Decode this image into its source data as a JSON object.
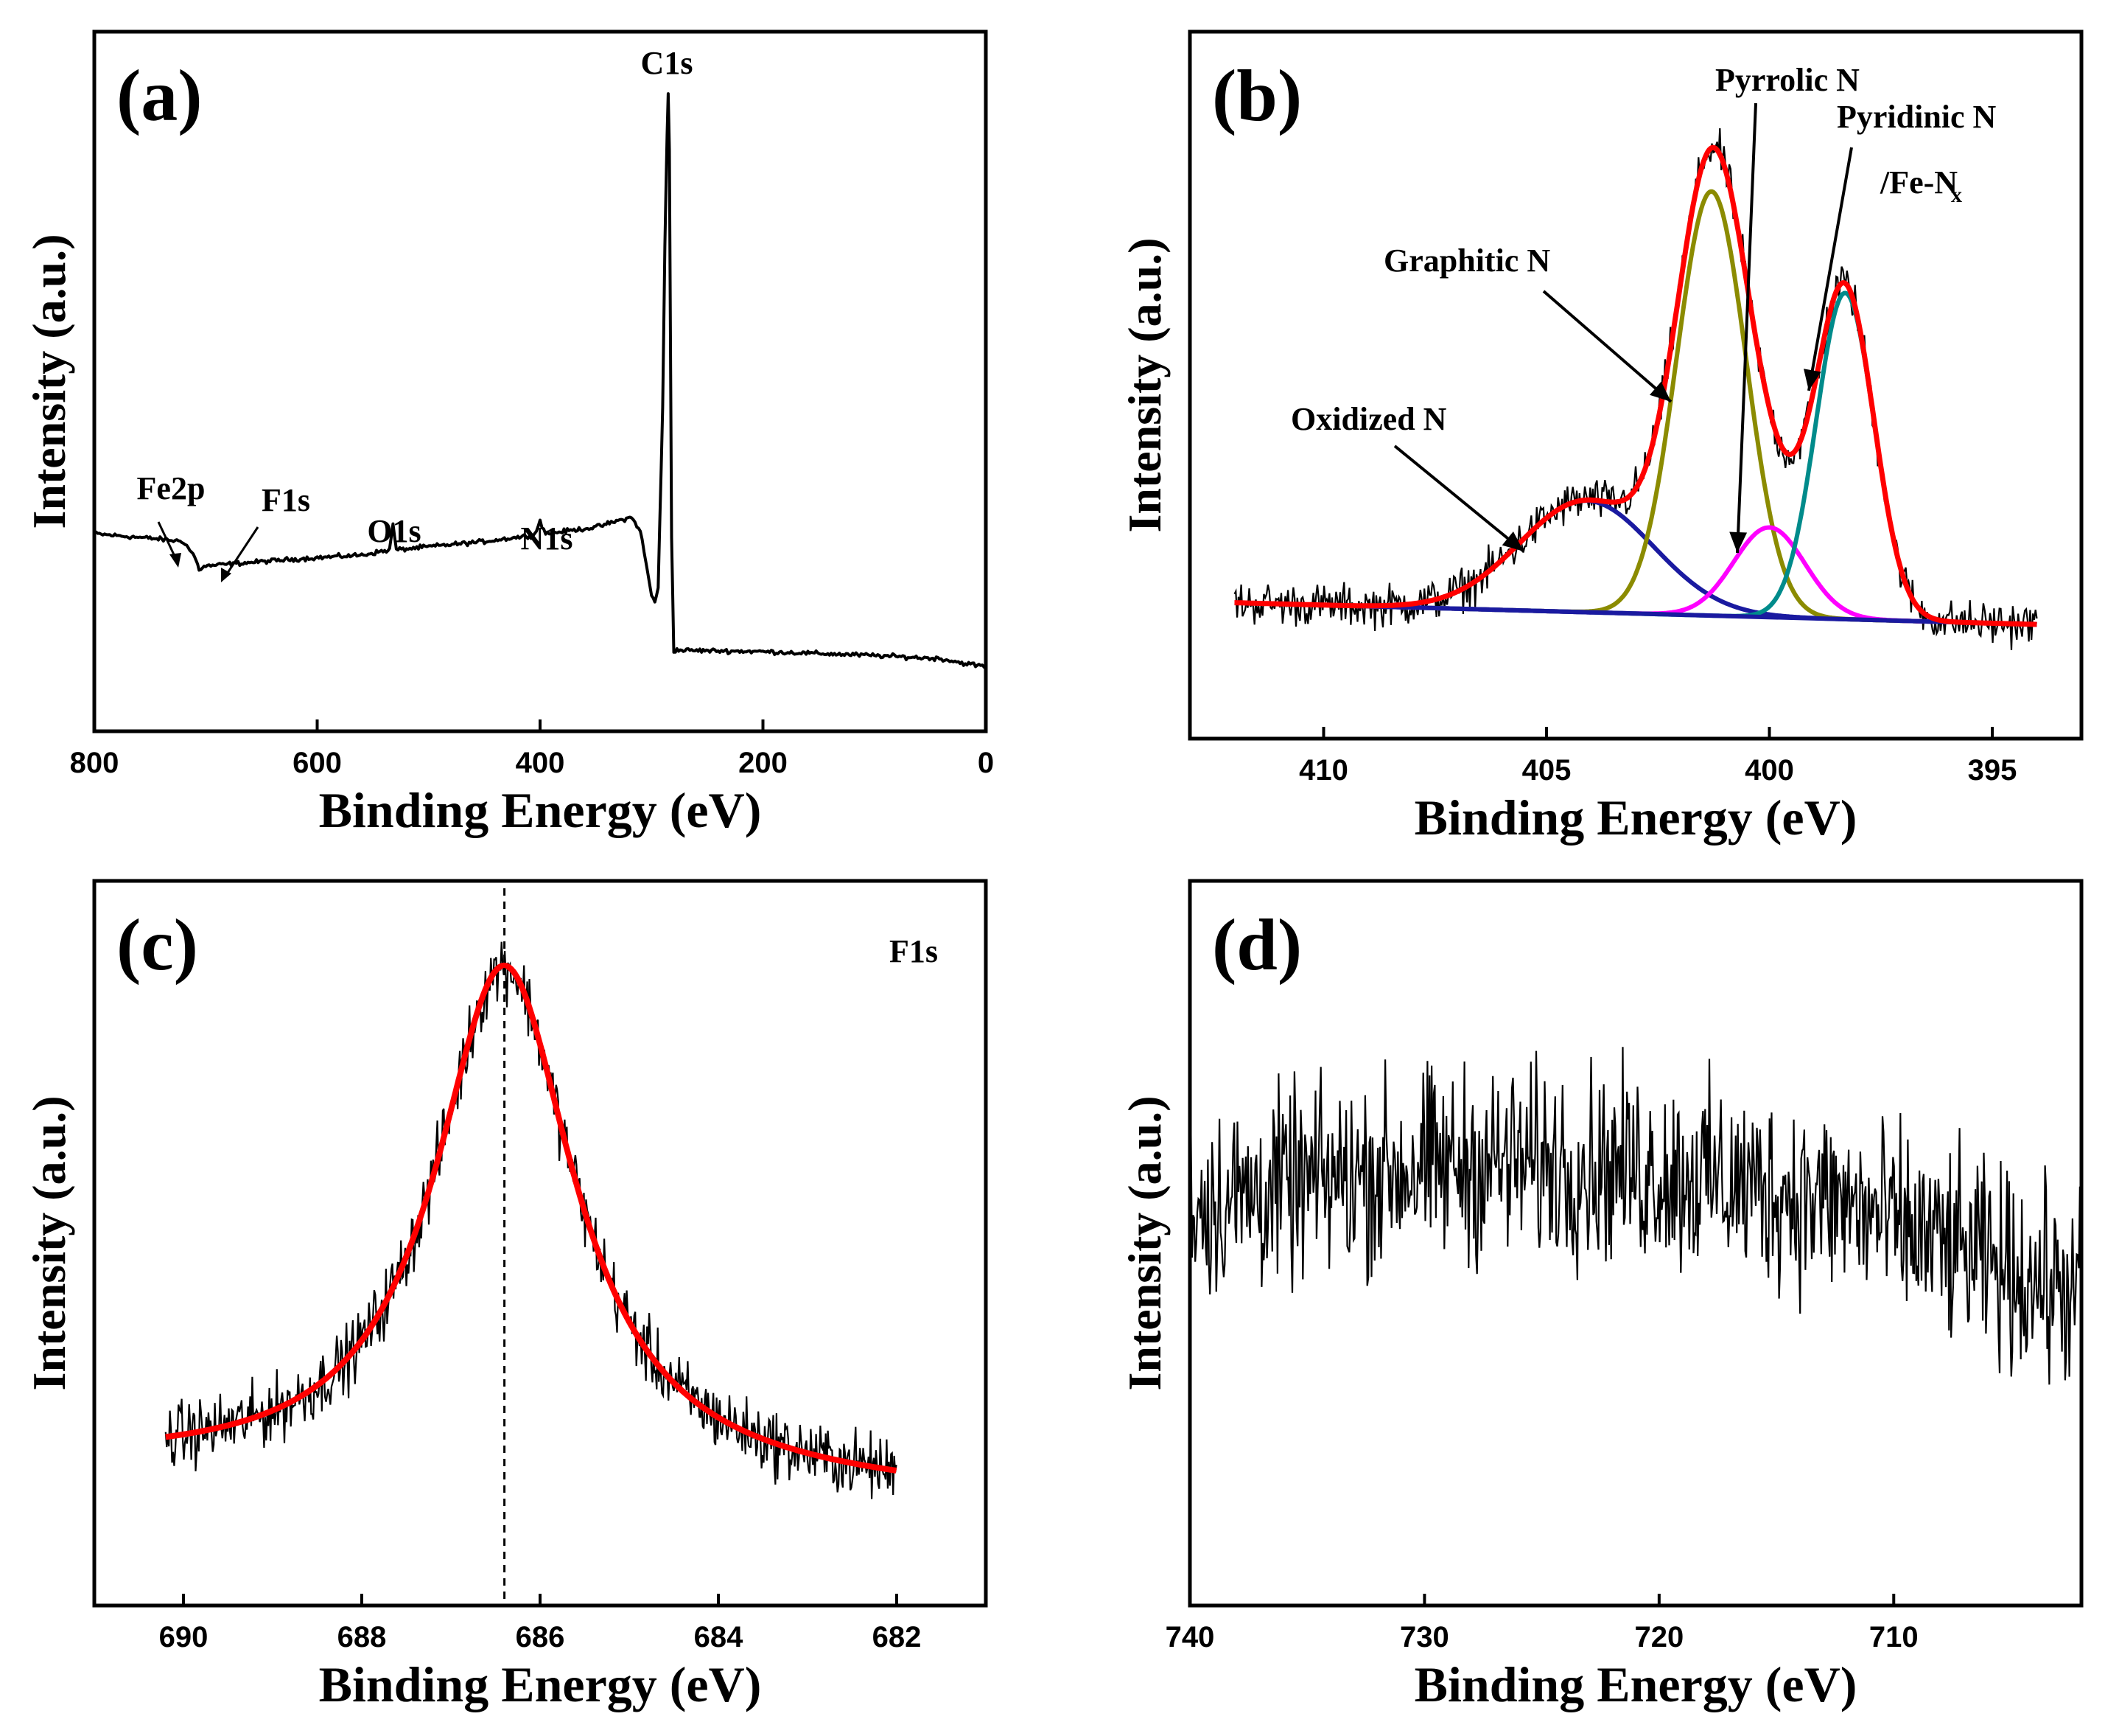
{
  "chart_data": [
    {
      "panel": "(a)",
      "type": "line",
      "xlabel": "Binding Energy (eV)",
      "ylabel": "Intensity (a.u.)",
      "xlim": [
        800,
        0
      ],
      "xticks": [
        "800",
        "600",
        "400",
        "200",
        "0"
      ],
      "x_reversed": true,
      "annotations": [
        {
          "text": "C1s",
          "x": 285
        },
        {
          "text": "N1s",
          "x": 400
        },
        {
          "text": "O1s",
          "x": 532
        },
        {
          "text": "F1s",
          "x": 686
        },
        {
          "text": "Fe2p",
          "x": 710
        }
      ],
      "series": [
        {
          "color": "#000000",
          "x": [
            800,
            780,
            750,
            720,
            710,
            706,
            700,
            680,
            650,
            600,
            560,
            535,
            532,
            529,
            500,
            450,
            405,
            400,
            395,
            350,
            330,
            318,
            310,
            305,
            300,
            297,
            294,
            290,
            288,
            286,
            285,
            284,
            282,
            280,
            270,
            200,
            100,
            40,
            20,
            0
          ],
          "y": [
            0.305,
            0.302,
            0.298,
            0.293,
            0.27,
            0.25,
            0.255,
            0.258,
            0.262,
            0.268,
            0.272,
            0.28,
            0.32,
            0.28,
            0.285,
            0.293,
            0.303,
            0.325,
            0.305,
            0.315,
            0.325,
            0.33,
            0.31,
            0.26,
            0.21,
            0.2,
            0.22,
            0.5,
            0.75,
            0.92,
            0.985,
            0.9,
            0.3,
            0.125,
            0.125,
            0.123,
            0.117,
            0.112,
            0.105,
            0.1
          ]
        }
      ]
    },
    {
      "panel": "(b)",
      "type": "line",
      "xlabel": "Binding Energy (eV)",
      "ylabel": "Intensity (a.u.)",
      "xlim": [
        413,
        393
      ],
      "xticks": [
        "410",
        "405",
        "400",
        "395"
      ],
      "x_reversed": true,
      "annotations": [
        {
          "text": "Oxidized N"
        },
        {
          "text": "Graphitic N"
        },
        {
          "text": "Pyrrolic N"
        },
        {
          "text": "Pyridinic N"
        },
        {
          "text": "/Fe-N"
        }
      ],
      "series": [
        {
          "color": "#000000",
          "center": [
            404.1,
            401.3,
            400.0,
            398.3
          ],
          "amplitude": [
            0.205,
            0.78,
            0.165,
            0.6
          ],
          "sigma": [
            1.5,
            0.78,
            0.8,
            0.65
          ],
          "baseline": 0.0,
          "noise": 0.035
        },
        {
          "color": "#ff0000",
          "center": [
            404.1,
            401.3,
            400.0,
            398.3
          ],
          "amplitude": [
            0.205,
            0.78,
            0.165,
            0.6
          ],
          "sigma": [
            1.5,
            0.78,
            0.8,
            0.65
          ],
          "baseline": 0.0
        },
        {
          "color": "#1a1aa0",
          "center": [
            404.1
          ],
          "amplitude": [
            0.205
          ],
          "sigma": [
            1.5
          ]
        },
        {
          "color": "#8b8b00",
          "center": [
            401.3
          ],
          "amplitude": [
            0.78
          ],
          "sigma": [
            0.78
          ]
        },
        {
          "color": "#ff00ff",
          "center": [
            400.0
          ],
          "amplitude": [
            0.165
          ],
          "sigma": [
            0.8
          ]
        },
        {
          "color": "#008b8b",
          "center": [
            398.3
          ],
          "amplitude": [
            0.6
          ],
          "sigma": [
            0.65
          ]
        },
        {
          "color": "#1a1aa0",
          "x": [
            412,
            394
          ],
          "y": [
            0.0,
            -0.04
          ],
          "role": "background"
        }
      ]
    },
    {
      "panel": "(c)",
      "type": "line",
      "xlabel": "Binding Energy (eV)",
      "ylabel": "Intensity (a.u.)",
      "xlim": [
        691,
        681
      ],
      "xticks": [
        "690",
        "688",
        "686",
        "684",
        "682"
      ],
      "x_reversed": true,
      "annotations": [
        {
          "text": "F1s"
        }
      ],
      "reference_line_x": 686.4,
      "series": [
        {
          "color": "#000000",
          "center": 686.4,
          "gamma": 0.95,
          "amplitude": 0.78,
          "baseline_left": 0.16,
          "baseline_right": 0.12,
          "noise": 0.045,
          "x_range": [
            690.2,
            682.0
          ]
        },
        {
          "color": "#ff0000",
          "center": 686.4,
          "gamma": 0.95,
          "amplitude": 0.78,
          "baseline_left": 0.16,
          "baseline_right": 0.12,
          "x_range": [
            690.2,
            682.0
          ]
        }
      ]
    },
    {
      "panel": "(d)",
      "type": "line",
      "xlabel": "Binding Energy (eV)",
      "ylabel": "Intensity (a.u.)",
      "xlim": [
        740,
        702
      ],
      "xticks": [
        "740",
        "730",
        "720",
        "710"
      ],
      "x_reversed": true,
      "annotations": [],
      "series": [
        {
          "color": "#000000",
          "mean": 0.55,
          "noise": 0.12,
          "x_range": [
            740,
            702
          ]
        }
      ]
    }
  ]
}
